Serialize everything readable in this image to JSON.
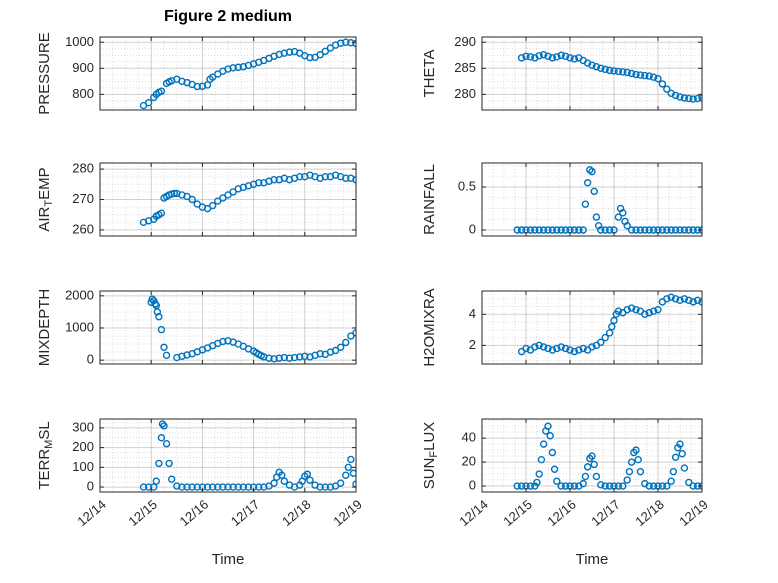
{
  "figure": {
    "title": "Figure 2 medium",
    "xlabel": "Time",
    "xtick_labels": [
      "12/14",
      "12/15",
      "12/16",
      "12/17",
      "12/18",
      "12/19"
    ],
    "xlim_days": [
      0,
      5
    ],
    "marker_color": "#0072BD",
    "axis_color": "#262626",
    "grid_color": "rgba(0,0,0,0.18)",
    "minor_grid_color": "rgba(0,0,0,0.13)"
  },
  "chart_data": [
    {
      "id": "pressure",
      "type": "scatter",
      "row": 0,
      "col": 0,
      "ylabel_pre": "PRESSURE",
      "ylabel_sub": "",
      "ylabel_post": "",
      "yticks": [
        800,
        900,
        1000
      ],
      "ytick_labels": [
        "800",
        "900",
        "1000"
      ],
      "ylim": [
        740,
        1020
      ],
      "x": [
        0.85,
        0.95,
        1.05,
        1.1,
        1.15,
        1.2,
        1.3,
        1.35,
        1.4,
        1.5,
        1.6,
        1.7,
        1.8,
        1.9,
        2.0,
        2.1,
        2.15,
        2.2,
        2.3,
        2.4,
        2.5,
        2.6,
        2.7,
        2.8,
        2.9,
        3.0,
        3.1,
        3.2,
        3.3,
        3.4,
        3.5,
        3.6,
        3.7,
        3.8,
        3.9,
        4.0,
        4.1,
        4.2,
        4.3,
        4.4,
        4.5,
        4.6,
        4.7,
        4.8,
        4.9,
        5.0
      ],
      "y": [
        757,
        768,
        788,
        800,
        808,
        812,
        842,
        848,
        852,
        858,
        850,
        845,
        838,
        830,
        831,
        836,
        858,
        866,
        878,
        889,
        897,
        902,
        904,
        906,
        911,
        917,
        923,
        930,
        938,
        946,
        953,
        958,
        962,
        964,
        958,
        948,
        941,
        942,
        952,
        965,
        978,
        989,
        996,
        1000,
        998,
        995
      ]
    },
    {
      "id": "theta",
      "type": "scatter",
      "row": 0,
      "col": 1,
      "ylabel_pre": "THETA",
      "ylabel_sub": "",
      "ylabel_post": "",
      "yticks": [
        280,
        285,
        290
      ],
      "ytick_labels": [
        "280",
        "285",
        "290"
      ],
      "ylim": [
        277,
        291
      ],
      "x": [
        0.9,
        1.0,
        1.1,
        1.2,
        1.3,
        1.4,
        1.5,
        1.6,
        1.7,
        1.8,
        1.9,
        2.0,
        2.1,
        2.2,
        2.3,
        2.4,
        2.5,
        2.6,
        2.7,
        2.8,
        2.9,
        3.0,
        3.1,
        3.2,
        3.3,
        3.4,
        3.5,
        3.6,
        3.7,
        3.8,
        3.9,
        4.0,
        4.1,
        4.2,
        4.3,
        4.4,
        4.5,
        4.6,
        4.7,
        4.8,
        4.9,
        5.0
      ],
      "y": [
        287.0,
        287.3,
        287.2,
        287.0,
        287.4,
        287.6,
        287.3,
        287.0,
        287.2,
        287.5,
        287.3,
        287.0,
        286.8,
        287.0,
        286.5,
        286.0,
        285.6,
        285.3,
        285.0,
        284.8,
        284.6,
        284.5,
        284.4,
        284.3,
        284.2,
        284.0,
        283.8,
        283.7,
        283.6,
        283.5,
        283.3,
        283.0,
        282.0,
        281.0,
        280.2,
        279.8,
        279.5,
        279.3,
        279.2,
        279.1,
        279.2,
        279.3
      ]
    },
    {
      "id": "airtemp",
      "type": "scatter",
      "row": 1,
      "col": 0,
      "ylabel_pre": "AIR",
      "ylabel_sub": "T",
      "ylabel_post": "EMP",
      "yticks": [
        260,
        270,
        280
      ],
      "ytick_labels": [
        "260",
        "270",
        "280"
      ],
      "ylim": [
        258,
        282
      ],
      "x": [
        0.85,
        0.95,
        1.05,
        1.1,
        1.15,
        1.2,
        1.25,
        1.3,
        1.35,
        1.4,
        1.45,
        1.5,
        1.6,
        1.7,
        1.8,
        1.9,
        2.0,
        2.1,
        2.2,
        2.3,
        2.4,
        2.5,
        2.6,
        2.7,
        2.8,
        2.9,
        3.0,
        3.1,
        3.2,
        3.3,
        3.4,
        3.5,
        3.6,
        3.7,
        3.8,
        3.9,
        4.0,
        4.1,
        4.2,
        4.3,
        4.4,
        4.5,
        4.6,
        4.7,
        4.8,
        4.9,
        5.0
      ],
      "y": [
        262.5,
        263.0,
        263.5,
        264.5,
        265.0,
        265.5,
        270.5,
        271.0,
        271.5,
        271.8,
        272.0,
        272.0,
        271.5,
        271.0,
        270.0,
        268.5,
        267.5,
        267.0,
        268.0,
        269.5,
        270.5,
        271.5,
        272.5,
        273.5,
        274.0,
        274.5,
        275.0,
        275.5,
        275.5,
        276.0,
        276.5,
        276.5,
        277.0,
        276.5,
        277.0,
        277.5,
        277.5,
        278.0,
        277.5,
        277.0,
        277.5,
        277.5,
        278.0,
        277.5,
        277.0,
        277.0,
        276.5
      ]
    },
    {
      "id": "rainfall",
      "type": "scatter",
      "row": 1,
      "col": 1,
      "ylabel_pre": "RAINFALL",
      "ylabel_sub": "",
      "ylabel_post": "",
      "yticks": [
        0,
        0.5
      ],
      "ytick_labels": [
        "0",
        "0.5"
      ],
      "ylim": [
        -0.07,
        0.78
      ],
      "x": [
        0.8,
        0.9,
        1.0,
        1.1,
        1.2,
        1.3,
        1.4,
        1.5,
        1.6,
        1.7,
        1.8,
        1.9,
        2.0,
        2.1,
        2.2,
        2.3,
        2.35,
        2.4,
        2.45,
        2.5,
        2.55,
        2.6,
        2.65,
        2.7,
        2.8,
        2.9,
        3.0,
        3.1,
        3.15,
        3.2,
        3.25,
        3.3,
        3.4,
        3.5,
        3.6,
        3.7,
        3.8,
        3.9,
        4.0,
        4.1,
        4.2,
        4.3,
        4.4,
        4.5,
        4.6,
        4.7,
        4.8,
        4.9,
        5.0
      ],
      "y": [
        0,
        0,
        0,
        0,
        0,
        0,
        0,
        0,
        0,
        0,
        0,
        0,
        0,
        0,
        0,
        0,
        0.3,
        0.55,
        0.7,
        0.68,
        0.45,
        0.15,
        0.05,
        0,
        0,
        0,
        0,
        0.15,
        0.25,
        0.2,
        0.1,
        0.05,
        0,
        0,
        0,
        0,
        0,
        0,
        0,
        0,
        0,
        0,
        0,
        0,
        0,
        0,
        0,
        0,
        0
      ]
    },
    {
      "id": "mixdepth",
      "type": "scatter",
      "row": 2,
      "col": 0,
      "ylabel_pre": "MIXDEPTH",
      "ylabel_sub": "",
      "ylabel_post": "",
      "yticks": [
        0,
        1000,
        2000
      ],
      "ytick_labels": [
        "0",
        "1000",
        "2000"
      ],
      "ylim": [
        -120,
        2150
      ],
      "x": [
        1.0,
        1.02,
        1.05,
        1.08,
        1.1,
        1.12,
        1.15,
        1.2,
        1.25,
        1.3,
        1.5,
        1.6,
        1.7,
        1.8,
        1.9,
        2.0,
        2.1,
        2.2,
        2.3,
        2.4,
        2.5,
        2.6,
        2.7,
        2.8,
        2.9,
        3.0,
        3.05,
        3.1,
        3.15,
        3.2,
        3.3,
        3.4,
        3.5,
        3.6,
        3.7,
        3.8,
        3.9,
        4.0,
        4.1,
        4.2,
        4.3,
        4.4,
        4.5,
        4.6,
        4.7,
        4.8,
        4.9,
        5.0
      ],
      "y": [
        1800,
        1900,
        1850,
        1750,
        1700,
        1500,
        1350,
        950,
        400,
        150,
        80,
        120,
        160,
        200,
        260,
        320,
        380,
        450,
        520,
        580,
        600,
        560,
        500,
        430,
        350,
        280,
        230,
        180,
        140,
        100,
        60,
        40,
        60,
        80,
        60,
        80,
        100,
        120,
        100,
        150,
        200,
        180,
        250,
        300,
        400,
        550,
        750,
        850
      ]
    },
    {
      "id": "h2omixra",
      "type": "scatter",
      "row": 2,
      "col": 1,
      "ylabel_pre": "H2OMIXRA",
      "ylabel_sub": "",
      "ylabel_post": "",
      "yticks": [
        2,
        4
      ],
      "ytick_labels": [
        "2",
        "4"
      ],
      "ylim": [
        0.8,
        5.5
      ],
      "x": [
        0.9,
        1.0,
        1.1,
        1.2,
        1.3,
        1.4,
        1.5,
        1.6,
        1.7,
        1.8,
        1.9,
        2.0,
        2.1,
        2.2,
        2.3,
        2.4,
        2.5,
        2.6,
        2.7,
        2.8,
        2.9,
        2.95,
        3.0,
        3.05,
        3.1,
        3.2,
        3.3,
        3.4,
        3.5,
        3.6,
        3.7,
        3.8,
        3.9,
        4.0,
        4.1,
        4.2,
        4.3,
        4.4,
        4.5,
        4.6,
        4.7,
        4.8,
        4.9,
        5.0
      ],
      "y": [
        1.6,
        1.8,
        1.7,
        1.9,
        2.0,
        1.9,
        1.8,
        1.7,
        1.8,
        1.9,
        1.8,
        1.7,
        1.6,
        1.7,
        1.8,
        1.7,
        1.9,
        2.0,
        2.2,
        2.5,
        2.8,
        3.2,
        3.6,
        4.0,
        4.2,
        4.1,
        4.3,
        4.4,
        4.3,
        4.2,
        4.0,
        4.1,
        4.2,
        4.3,
        4.8,
        5.0,
        5.1,
        5.0,
        4.9,
        5.0,
        4.9,
        4.8,
        4.9,
        4.8
      ]
    },
    {
      "id": "terrmsl",
      "type": "scatter",
      "row": 3,
      "col": 0,
      "ylabel_pre": "TERR",
      "ylabel_sub": "M",
      "ylabel_post": "SL",
      "yticks": [
        0,
        100,
        200,
        300
      ],
      "ytick_labels": [
        "0",
        "100",
        "200",
        "300"
      ],
      "ylim": [
        -25,
        345
      ],
      "x": [
        0.85,
        0.95,
        1.05,
        1.1,
        1.15,
        1.2,
        1.22,
        1.25,
        1.3,
        1.35,
        1.4,
        1.5,
        1.6,
        1.7,
        1.8,
        1.9,
        2.0,
        2.1,
        2.2,
        2.3,
        2.4,
        2.5,
        2.6,
        2.7,
        2.8,
        2.9,
        3.0,
        3.1,
        3.2,
        3.3,
        3.4,
        3.45,
        3.5,
        3.55,
        3.6,
        3.7,
        3.8,
        3.9,
        3.95,
        4.0,
        4.05,
        4.1,
        4.2,
        4.3,
        4.4,
        4.5,
        4.6,
        4.7,
        4.8,
        4.85,
        4.9,
        4.95,
        5.0
      ],
      "y": [
        0,
        0,
        0,
        30,
        120,
        250,
        320,
        310,
        220,
        120,
        40,
        5,
        0,
        0,
        0,
        0,
        0,
        0,
        0,
        0,
        0,
        0,
        0,
        0,
        0,
        0,
        0,
        0,
        0,
        5,
        20,
        50,
        75,
        60,
        30,
        10,
        0,
        10,
        30,
        55,
        65,
        35,
        10,
        0,
        0,
        0,
        5,
        20,
        60,
        100,
        140,
        70,
        15
      ]
    },
    {
      "id": "sunflux",
      "type": "scatter",
      "row": 3,
      "col": 1,
      "ylabel_pre": "SUN",
      "ylabel_sub": "F",
      "ylabel_post": "LUX",
      "yticks": [
        0,
        20,
        40
      ],
      "ytick_labels": [
        "0",
        "20",
        "40"
      ],
      "ylim": [
        -5,
        56
      ],
      "x": [
        0.8,
        0.9,
        1.0,
        1.1,
        1.2,
        1.25,
        1.3,
        1.35,
        1.4,
        1.45,
        1.5,
        1.55,
        1.6,
        1.65,
        1.7,
        1.8,
        1.9,
        2.0,
        2.1,
        2.2,
        2.3,
        2.35,
        2.4,
        2.45,
        2.5,
        2.55,
        2.6,
        2.7,
        2.8,
        2.9,
        3.0,
        3.1,
        3.2,
        3.3,
        3.35,
        3.4,
        3.45,
        3.5,
        3.55,
        3.6,
        3.7,
        3.8,
        3.9,
        4.0,
        4.1,
        4.2,
        4.3,
        4.35,
        4.4,
        4.45,
        4.5,
        4.55,
        4.6,
        4.7,
        4.8,
        4.9,
        5.0
      ],
      "y": [
        0,
        0,
        0,
        0,
        0,
        3,
        10,
        22,
        35,
        46,
        50,
        42,
        28,
        14,
        4,
        0,
        0,
        0,
        0,
        0,
        2,
        8,
        16,
        23,
        25,
        18,
        8,
        1,
        0,
        0,
        0,
        0,
        0,
        5,
        12,
        20,
        28,
        30,
        22,
        12,
        2,
        0,
        0,
        0,
        0,
        0,
        4,
        12,
        24,
        32,
        35,
        27,
        15,
        3,
        0,
        0,
        0
      ]
    }
  ]
}
